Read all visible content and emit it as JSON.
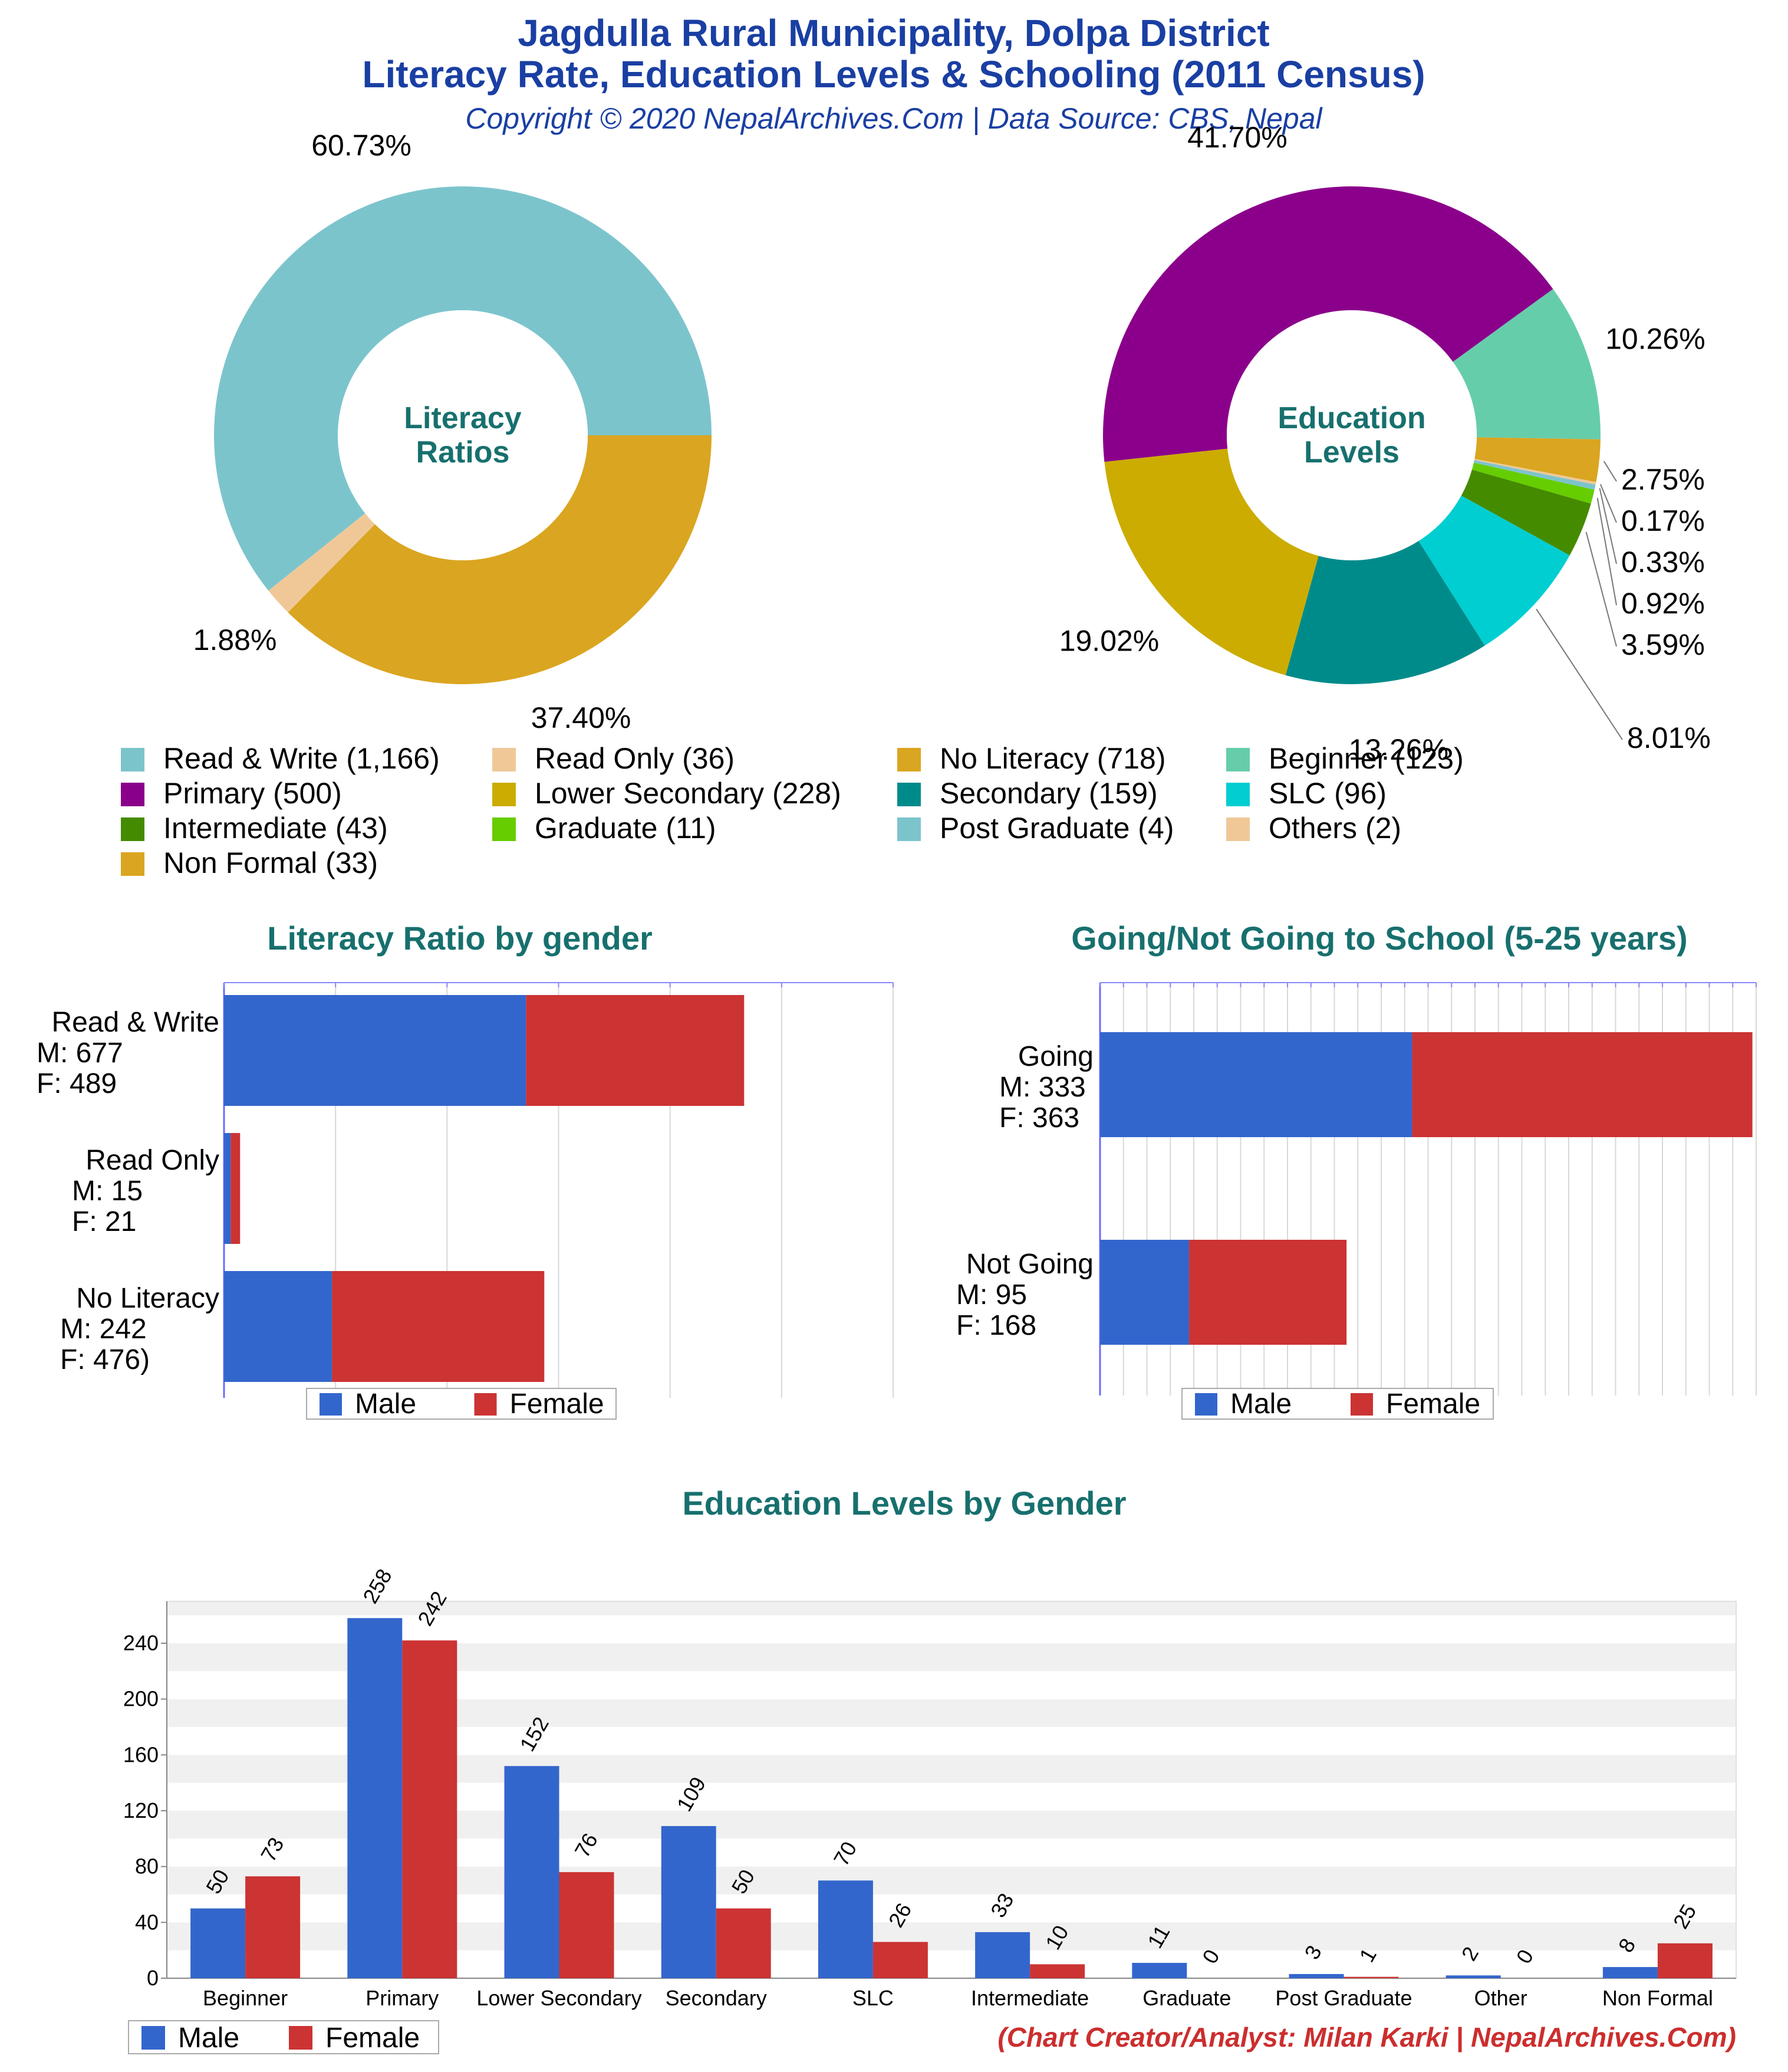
{
  "header": {
    "title_line1": "Jagdulla Rural Municipality, Dolpa District",
    "title_line2": "Literacy Rate, Education Levels & Schooling (2011 Census)",
    "copyright": "Copyright © 2020 NepalArchives.Com | Data Source: CBS, Nepal"
  },
  "colors": {
    "male": "#3366cc",
    "female": "#cc3333",
    "title": "#1a3fa3",
    "section": "#17706e",
    "credit": "#cc2e2e"
  },
  "legend": [
    {
      "label": "Read & Write (1,166)",
      "color": "#7cc4cc"
    },
    {
      "label": "Read Only (36)",
      "color": "#f0c898"
    },
    {
      "label": "No Literacy (718)",
      "color": "#daa520"
    },
    {
      "label": "Beginner (123)",
      "color": "#66cdaa"
    },
    {
      "label": "Primary (500)",
      "color": "#8b008b"
    },
    {
      "label": "Lower Secondary (228)",
      "color": "#ccac00"
    },
    {
      "label": "Secondary (159)",
      "color": "#008b8b"
    },
    {
      "label": "SLC (96)",
      "color": "#00ced1"
    },
    {
      "label": "Intermediate (43)",
      "color": "#458b00"
    },
    {
      "label": "Graduate (11)",
      "color": "#66cd00"
    },
    {
      "label": "Post Graduate (4)",
      "color": "#7cc4cc"
    },
    {
      "label": "Others (2)",
      "color": "#f0c898"
    },
    {
      "label": "Non Formal (33)",
      "color": "#daa520"
    }
  ],
  "credit": "(Chart Creator/Analyst: Milan Karki | NepalArchives.Com)",
  "chart_data": [
    {
      "type": "pie",
      "center_label": [
        "Literacy",
        "Ratios"
      ],
      "slices": [
        {
          "name": "Read & Write",
          "value": 1166,
          "pct_label": "60.73%",
          "color": "#7cc4cc"
        },
        {
          "name": "Read Only",
          "value": 36,
          "pct_label": "1.88%",
          "color": "#f0c898"
        },
        {
          "name": "No Literacy",
          "value": 718,
          "pct_label": "37.40%",
          "color": "#daa520"
        }
      ]
    },
    {
      "type": "pie",
      "center_label": [
        "Education",
        "Levels"
      ],
      "slices": [
        {
          "name": "Beginner",
          "value": 123,
          "pct_label": "10.26%",
          "color": "#66cdaa"
        },
        {
          "name": "Non Formal",
          "value": 33,
          "pct_label": "2.75%",
          "color": "#daa520"
        },
        {
          "name": "Others",
          "value": 2,
          "pct_label": "0.17%",
          "color": "#f0c898"
        },
        {
          "name": "Post Graduate",
          "value": 4,
          "pct_label": "0.33%",
          "color": "#7cc4cc"
        },
        {
          "name": "Graduate",
          "value": 11,
          "pct_label": "0.92%",
          "color": "#66cd00"
        },
        {
          "name": "Intermediate",
          "value": 43,
          "pct_label": "3.59%",
          "color": "#458b00"
        },
        {
          "name": "SLC",
          "value": 96,
          "pct_label": "8.01%",
          "color": "#00ced1"
        },
        {
          "name": "Secondary",
          "value": 159,
          "pct_label": "13.26%",
          "color": "#008b8b"
        },
        {
          "name": "Lower Secondary",
          "value": 228,
          "pct_label": "19.02%",
          "color": "#ccac00"
        },
        {
          "name": "Primary",
          "value": 500,
          "pct_label": "41.70%",
          "color": "#8b008b"
        }
      ]
    },
    {
      "type": "bar",
      "orientation": "horizontal",
      "stacked": true,
      "title": "Literacy Ratio by gender",
      "categories": [
        "Read & Write",
        "Read Only",
        "No Literacy"
      ],
      "category_labels": [
        [
          "Read & Write",
          "M: 677",
          "F: 489"
        ],
        [
          "Read Only",
          "M: 15",
          "F: 21"
        ],
        [
          "No Literacy",
          "M: 242",
          "F: 476)"
        ]
      ],
      "series": [
        {
          "name": "Male",
          "values": [
            677,
            15,
            242
          ]
        },
        {
          "name": "Female",
          "values": [
            489,
            21,
            476
          ]
        }
      ],
      "xlim": [
        0,
        1500
      ],
      "legend": "bottom"
    },
    {
      "type": "bar",
      "orientation": "horizontal",
      "stacked": true,
      "title": "Going/Not Going to School (5-25 years)",
      "categories": [
        "Going",
        "Not Going"
      ],
      "category_labels": [
        [
          "Going",
          "M: 333",
          "F: 363"
        ],
        [
          "Not Going",
          "M: 95",
          "F: 168"
        ]
      ],
      "series": [
        {
          "name": "Male",
          "values": [
            333,
            95
          ]
        },
        {
          "name": "Female",
          "values": [
            363,
            168
          ]
        }
      ],
      "xlim": [
        0,
        700
      ],
      "legend": "bottom"
    },
    {
      "type": "bar",
      "title": "Education Levels by Gender",
      "categories": [
        "Beginner",
        "Primary",
        "Lower Secondary",
        "Secondary",
        "SLC",
        "Intermediate",
        "Graduate",
        "Post Graduate",
        "Other",
        "Non Formal"
      ],
      "series": [
        {
          "name": "Male",
          "values": [
            50,
            258,
            152,
            109,
            70,
            33,
            11,
            3,
            2,
            8
          ]
        },
        {
          "name": "Female",
          "values": [
            73,
            242,
            76,
            50,
            26,
            10,
            0,
            1,
            0,
            25
          ]
        }
      ],
      "yticks": [
        "0",
        "40",
        "80",
        "120",
        "160",
        "200",
        "240"
      ],
      "ylim": [
        0,
        270
      ],
      "grid": true,
      "legend": "bottom-left"
    }
  ]
}
